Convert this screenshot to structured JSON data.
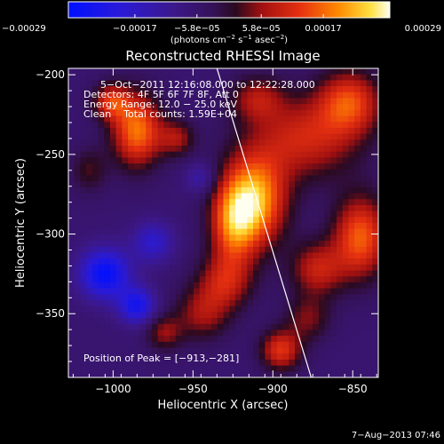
{
  "chart_data": {
    "type": "heatmap",
    "title": "Reconstructed RHESSI Image",
    "xlabel": "Heliocentric X (arcsec)",
    "ylabel": "Heliocentric Y (arcsec)",
    "xlim": [
      -1028,
      -834
    ],
    "ylim": [
      -390,
      -196
    ],
    "x_ticks": [
      -1000,
      -950,
      -900,
      -850
    ],
    "y_ticks": [
      -350,
      -300,
      -250,
      -200
    ],
    "x_tick_labels": [
      "−1000",
      "−950",
      "−900",
      "−850"
    ],
    "y_tick_labels": [
      "−350",
      "−300",
      "−250",
      "−200"
    ],
    "colorbar": {
      "range": [
        -0.00029,
        0.00029
      ],
      "ticks": [
        -0.00029,
        -0.00017,
        -5.8e-05,
        5.8e-05,
        0.00017,
        0.00029
      ],
      "tick_labels": [
        "−0.00029",
        "−0.00017",
        "−5.8e−05",
        "5.8e−05",
        "0.00017",
        "0.00029"
      ],
      "units_main": "(photons cm",
      "units_exp1": "−2",
      "units_mid": " s",
      "units_exp2": "−1",
      "units_mid2": " asec",
      "units_exp3": "−2",
      "units_end": ")"
    },
    "annotations": {
      "time": "5−Oct−2011 12:16:08.000 to 12:22:28.000",
      "detectors": "Detectors: 4F 5F 6F 7F 8F, Att 0",
      "energy": "Energy Range: 12.0 − 25.0 keV",
      "clean": "Clean    Total counts: 1.59E+04",
      "peak": "Position of Peak = [−913,−281]"
    },
    "limb_line": [
      [
        -935,
        -196
      ],
      [
        -876,
        -390
      ]
    ],
    "sources": [
      {
        "x": -912,
        "y": -279,
        "sx": 14,
        "sy": 20,
        "amp": 0.00029
      },
      {
        "x": -925,
        "y": -295,
        "sx": 10,
        "sy": 18,
        "amp": 0.00018
      },
      {
        "x": -985,
        "y": -235,
        "sx": 11,
        "sy": 16,
        "amp": 0.00024
      },
      {
        "x": -1001,
        "y": -217,
        "sx": 8,
        "sy": 8,
        "amp": 0.00017
      },
      {
        "x": -960,
        "y": -240,
        "sx": 8,
        "sy": 8,
        "amp": 0.00012
      },
      {
        "x": -880,
        "y": -240,
        "sx": 24,
        "sy": 18,
        "amp": 0.00016
      },
      {
        "x": -852,
        "y": -217,
        "sx": 14,
        "sy": 14,
        "amp": 0.00019
      },
      {
        "x": -910,
        "y": -215,
        "sx": 12,
        "sy": 10,
        "amp": 0.00012
      },
      {
        "x": -845,
        "y": -302,
        "sx": 12,
        "sy": 18,
        "amp": 0.00022
      },
      {
        "x": -872,
        "y": -322,
        "sx": 12,
        "sy": 12,
        "amp": 0.00015
      },
      {
        "x": -895,
        "y": -373,
        "sx": 9,
        "sy": 9,
        "amp": 0.00018
      },
      {
        "x": -930,
        "y": -330,
        "sx": 12,
        "sy": 12,
        "amp": 0.00014
      },
      {
        "x": -944,
        "y": -350,
        "sx": 12,
        "sy": 12,
        "amp": 0.00012
      },
      {
        "x": -968,
        "y": -362,
        "sx": 8,
        "sy": 8,
        "amp": 0.00011
      },
      {
        "x": -878,
        "y": -353,
        "sx": 10,
        "sy": 10,
        "amp": 0.0001
      },
      {
        "x": -1015,
        "y": -260,
        "sx": 8,
        "sy": 10,
        "amp": 8e-05
      },
      {
        "x": -1005,
        "y": -325,
        "sx": 11,
        "sy": 11,
        "amp": -0.00022
      },
      {
        "x": -985,
        "y": -345,
        "sx": 8,
        "sy": 8,
        "amp": -0.00018
      },
      {
        "x": -975,
        "y": -305,
        "sx": 9,
        "sy": 9,
        "amp": -0.00012
      },
      {
        "x": -945,
        "y": -265,
        "sx": 7,
        "sy": 7,
        "amp": -8e-05
      }
    ]
  },
  "footer": {
    "date": "7−Aug−2013 07:46"
  }
}
